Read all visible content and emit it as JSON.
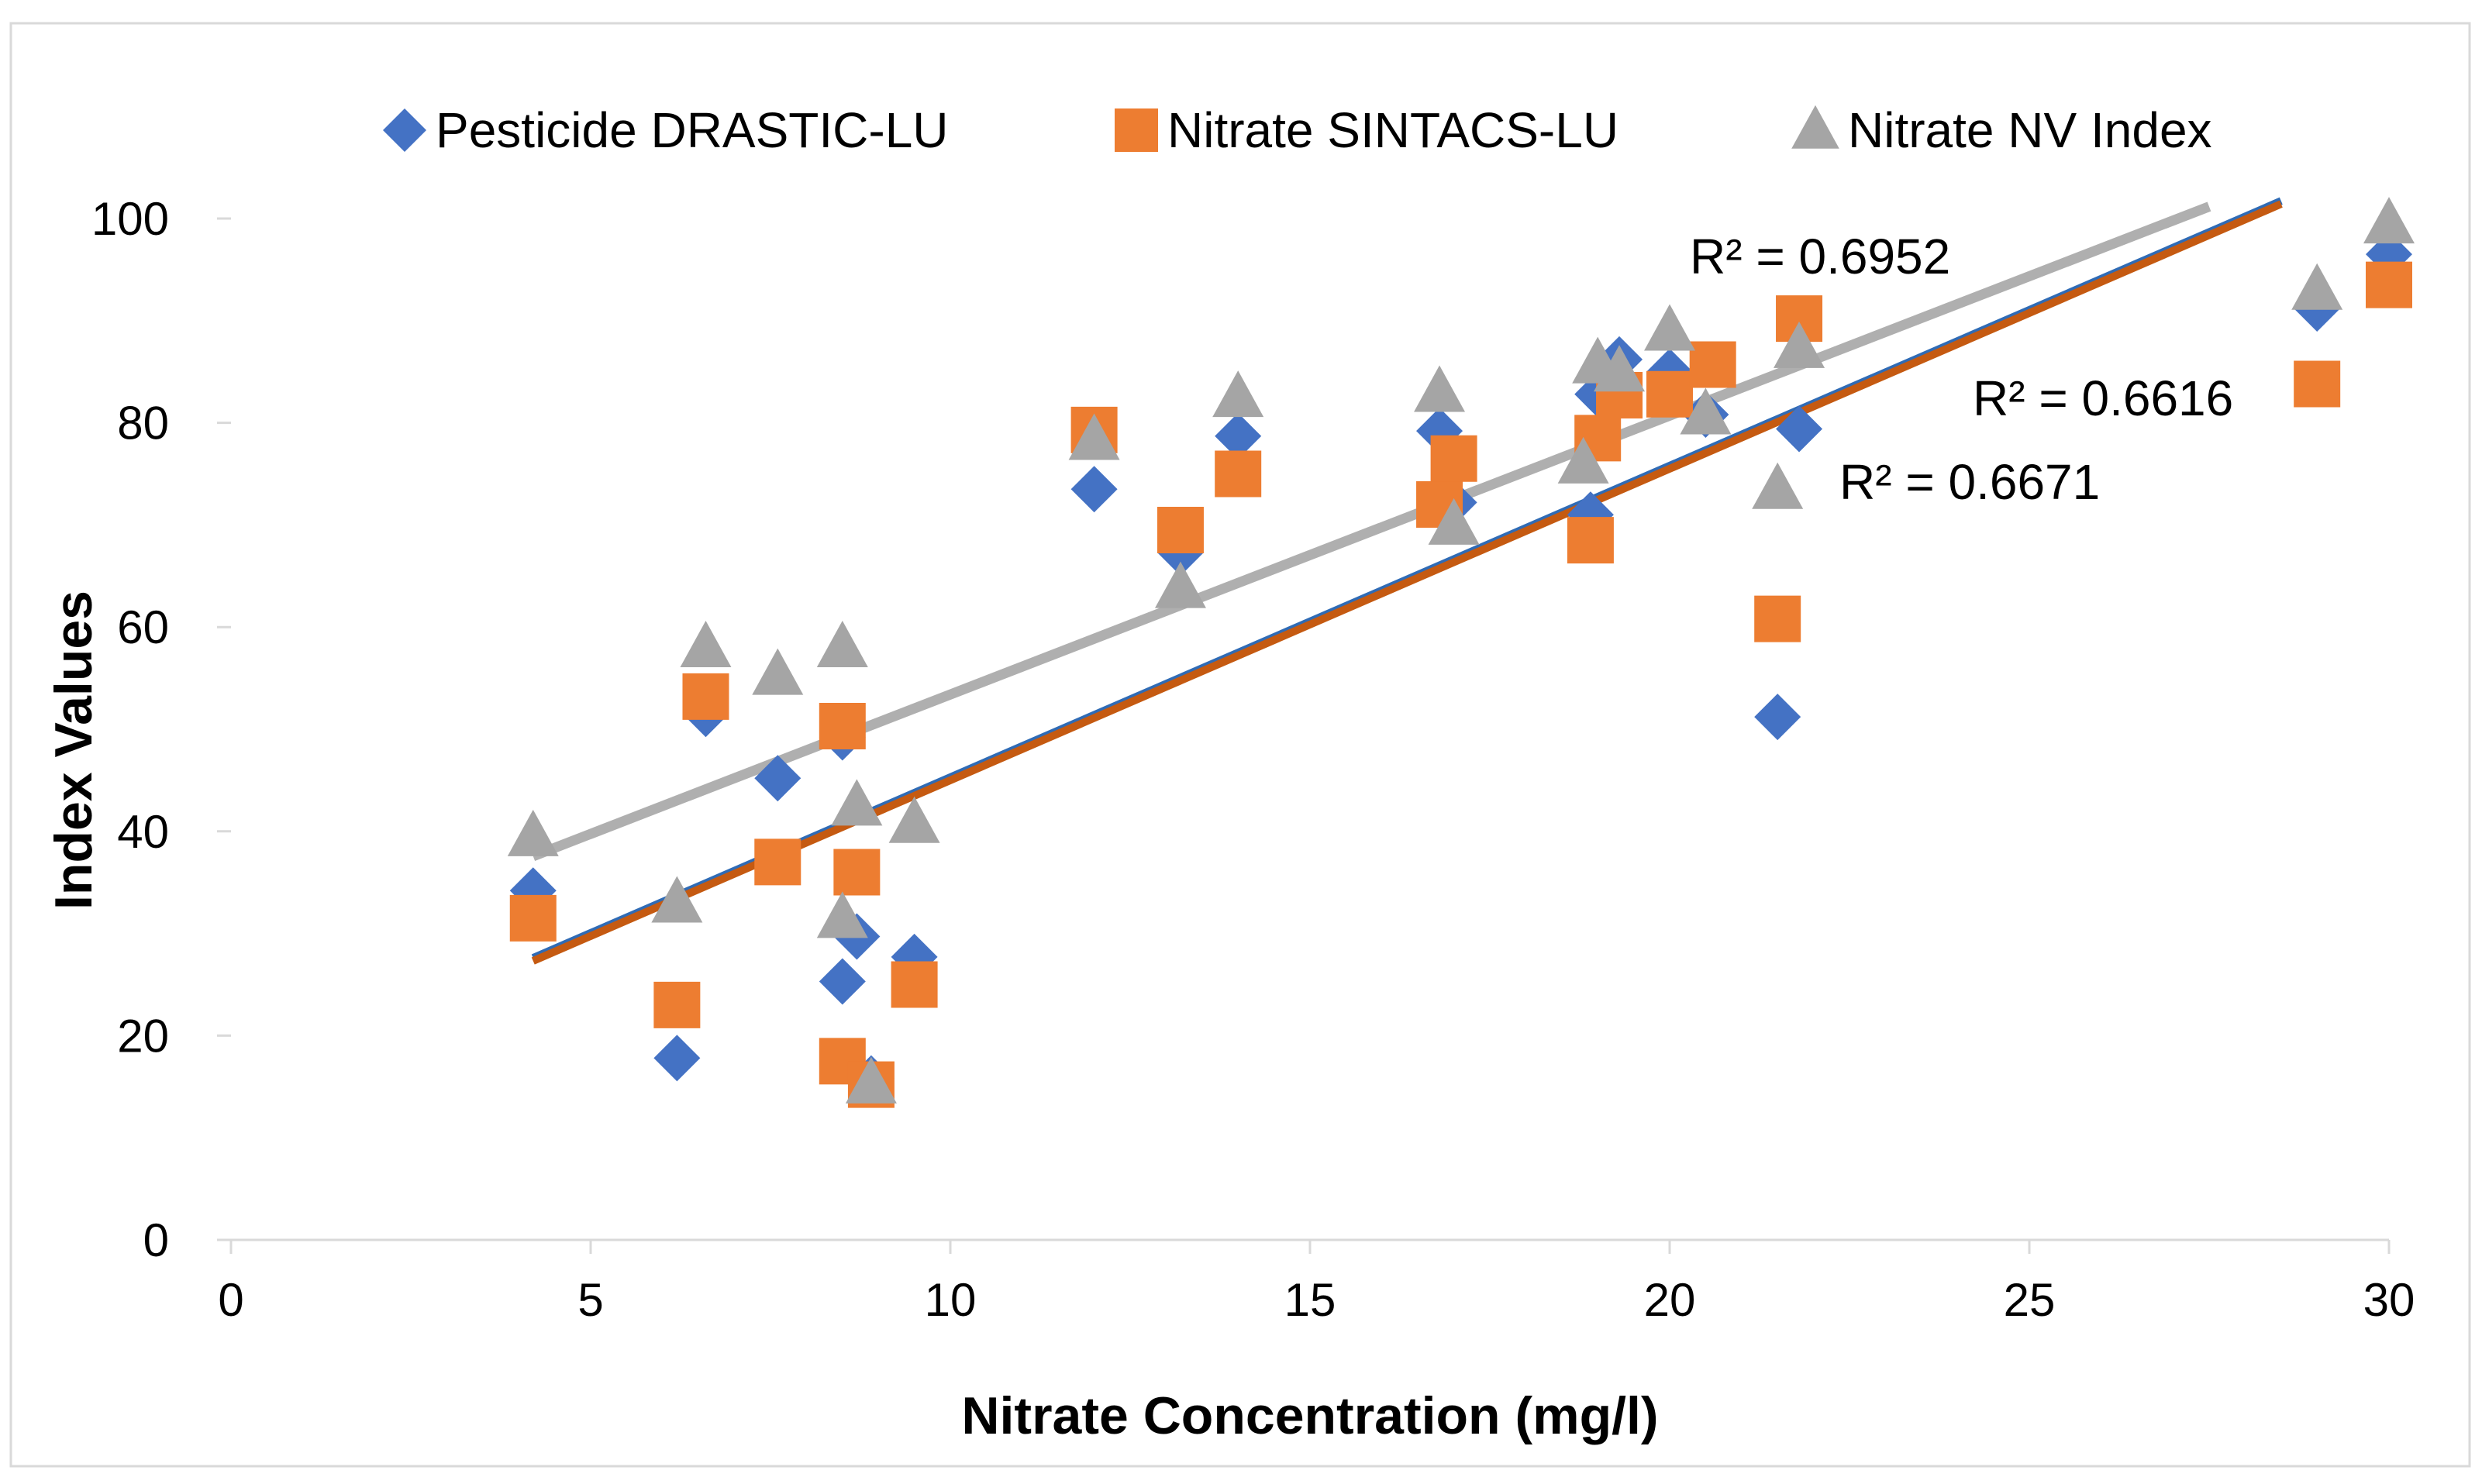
{
  "chart_data": {
    "type": "scatter",
    "title": "",
    "xlabel": "Nitrate Concentration (mg/l)",
    "ylabel": "Index Values",
    "xlim": [
      0,
      30
    ],
    "ylim": [
      0,
      100
    ],
    "x_ticks": [
      0,
      5,
      10,
      15,
      20,
      25,
      30
    ],
    "y_ticks": [
      0,
      20,
      40,
      60,
      80,
      100
    ],
    "x_tick_labels": [
      "0",
      "5",
      "10",
      "15",
      "20",
      "25",
      "30"
    ],
    "y_tick_labels": [
      "0",
      "20",
      "40",
      "60",
      "80",
      "100"
    ],
    "grid": false,
    "legend_position": "top",
    "series": [
      {
        "name": "Pesticide DRASTIC-LU",
        "marker": "diamond",
        "color": "#4472C4",
        "points": [
          [
            4.2,
            34.2
          ],
          [
            6.2,
            17.8
          ],
          [
            6.6,
            51.5
          ],
          [
            7.6,
            45.2
          ],
          [
            8.5,
            49.2
          ],
          [
            8.5,
            25.3
          ],
          [
            8.7,
            29.7
          ],
          [
            8.9,
            15.8
          ],
          [
            9.5,
            27.7
          ],
          [
            12.0,
            73.5
          ],
          [
            13.2,
            67.3
          ],
          [
            14.0,
            78.7
          ],
          [
            16.8,
            79.2
          ],
          [
            16.9,
            72.4
          ],
          [
            17.0,
            72.2
          ],
          [
            18.9,
            71.0
          ],
          [
            19.0,
            82.8
          ],
          [
            19.3,
            86.2
          ],
          [
            20.0,
            85.0
          ],
          [
            20.5,
            80.8
          ],
          [
            21.5,
            51.2
          ],
          [
            21.8,
            79.4
          ],
          [
            29.0,
            91.2
          ],
          [
            30.0,
            96.5
          ]
        ],
        "trendline": {
          "intercept": 14.8,
          "slope": 3.05,
          "x_range": [
            4.2,
            28.5
          ]
        },
        "r2_label": "R² = 0.6671"
      },
      {
        "name": "Nitrate SINTACS-LU",
        "marker": "square",
        "color": "#ED7D31",
        "points": [
          [
            4.2,
            31.5
          ],
          [
            6.2,
            23.0
          ],
          [
            6.6,
            53.2
          ],
          [
            7.6,
            37.0
          ],
          [
            8.5,
            50.3
          ],
          [
            8.5,
            17.5
          ],
          [
            8.7,
            36.0
          ],
          [
            8.9,
            15.2
          ],
          [
            9.5,
            25.0
          ],
          [
            12.0,
            79.3
          ],
          [
            13.2,
            69.5
          ],
          [
            14.0,
            75.0
          ],
          [
            16.8,
            72.0
          ],
          [
            17.0,
            76.5
          ],
          [
            18.9,
            68.5
          ],
          [
            19.0,
            78.5
          ],
          [
            19.3,
            82.7
          ],
          [
            20.0,
            82.8
          ],
          [
            20.6,
            85.7
          ],
          [
            21.5,
            60.8
          ],
          [
            21.8,
            90.2
          ],
          [
            29.0,
            83.8
          ],
          [
            30.0,
            93.5
          ]
        ],
        "trendline": {
          "intercept": 14.5,
          "slope": 3.05,
          "x_range": [
            4.2,
            28.5
          ]
        },
        "r2_label": "R² = 0.6616"
      },
      {
        "name": "Nitrate NV Index",
        "marker": "triangle",
        "color": "#A5A5A5",
        "points": [
          [
            4.2,
            39.5
          ],
          [
            6.2,
            33.0
          ],
          [
            6.6,
            58.0
          ],
          [
            7.6,
            55.3
          ],
          [
            8.5,
            58.0
          ],
          [
            8.5,
            31.5
          ],
          [
            8.7,
            42.5
          ],
          [
            8.9,
            15.3
          ],
          [
            9.5,
            40.8
          ],
          [
            12.0,
            78.3
          ],
          [
            13.2,
            63.8
          ],
          [
            14.0,
            82.5
          ],
          [
            16.8,
            83.0
          ],
          [
            17.0,
            70.0
          ],
          [
            18.8,
            76.0
          ],
          [
            19.0,
            85.8
          ],
          [
            19.3,
            85.0
          ],
          [
            20.0,
            89.0
          ],
          [
            20.5,
            80.8
          ],
          [
            21.5,
            73.5
          ],
          [
            21.8,
            87.3
          ],
          [
            29.0,
            93.0
          ],
          [
            30.0,
            99.5
          ]
        ],
        "trendline": {
          "intercept": 26.1,
          "slope": 2.73,
          "x_range": [
            4.2,
            27.5
          ]
        },
        "r2_label": "R² = 0.6952"
      }
    ]
  }
}
